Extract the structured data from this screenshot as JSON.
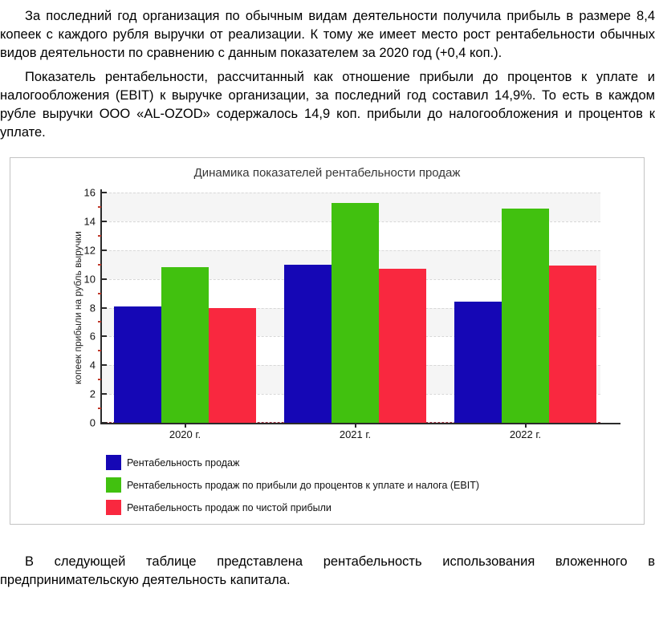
{
  "document": {
    "paragraphs": [
      {
        "text": "За последний год организация по обычным видам деятельности получила прибыль в размере 8,4 копеек с каждого рубля выручки от реализации. К тому же имеет место рост рентабельности обычных видов деятельности по сравнению с данным показателем за 2020 год (+0,4 коп.)."
      },
      {
        "text": "Показатель рентабельности, рассчитанный как отношение прибыли до процентов к уплате и налогообложения (EBIT) к выручке организации, за последний год составил 14,9%. То есть в каждом рубле выручки ООО «AL-OZOD» содержалось 14,9 коп. прибыли до налогообложения и процентов к уплате."
      },
      {
        "text": "В следующей таблице представлена рентабельность использования вложенного в предпринимательскую деятельность капитала."
      }
    ]
  },
  "chart_data": {
    "type": "bar",
    "title": "Динамика показателей рентабельности продаж",
    "ylabel": "копеек прибыли на рубль выручки",
    "xlabel": "",
    "categories": [
      "2020 г.",
      "2021 г.",
      "2022 г."
    ],
    "series": [
      {
        "name": "Рентабельность продаж",
        "color": "#1507b5",
        "values": [
          8.1,
          11.0,
          8.4
        ]
      },
      {
        "name": "Рентабельность продаж по прибыли до процентов к уплате и налога (EBIT)",
        "color": "#41c10f",
        "values": [
          10.8,
          15.3,
          14.9
        ]
      },
      {
        "name": "Рентабельность продаж по чистой прибыли",
        "color": "#f9283f",
        "values": [
          8.0,
          10.7,
          10.9
        ]
      }
    ],
    "ylim": [
      0,
      16
    ],
    "ytick_step": 2,
    "ytick_minor_step": 1,
    "grid": "dashed-horizontal",
    "background_bands": "alternating-2-unit",
    "legend_position": "bottom-left"
  }
}
